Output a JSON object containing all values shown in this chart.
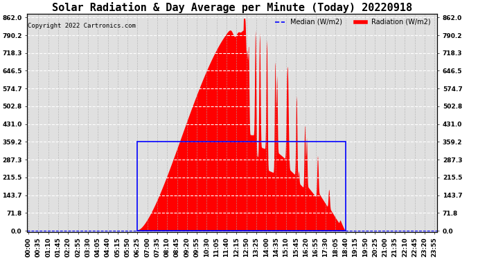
{
  "title": "Solar Radiation & Day Average per Minute (Today) 20220918",
  "copyright": "Copyright 2022 Cartronics.com",
  "legend_median": "Median (W/m2)",
  "legend_radiation": "Radiation (W/m2)",
  "yticks": [
    0.0,
    71.8,
    143.7,
    215.5,
    287.3,
    359.2,
    431.0,
    502.8,
    574.7,
    646.5,
    718.3,
    790.2,
    862.0
  ],
  "ymax": 862.0,
  "ymin": 0.0,
  "median_value": 359.2,
  "median_color": "#0000ff",
  "radiation_color": "#ff0000",
  "background_color": "#ffffff",
  "grid_color": "#aaaaaa",
  "title_fontsize": 11,
  "tick_fontsize": 6.5,
  "sunrise_min": 385,
  "sunset_min": 1120,
  "total_minutes": 1440
}
